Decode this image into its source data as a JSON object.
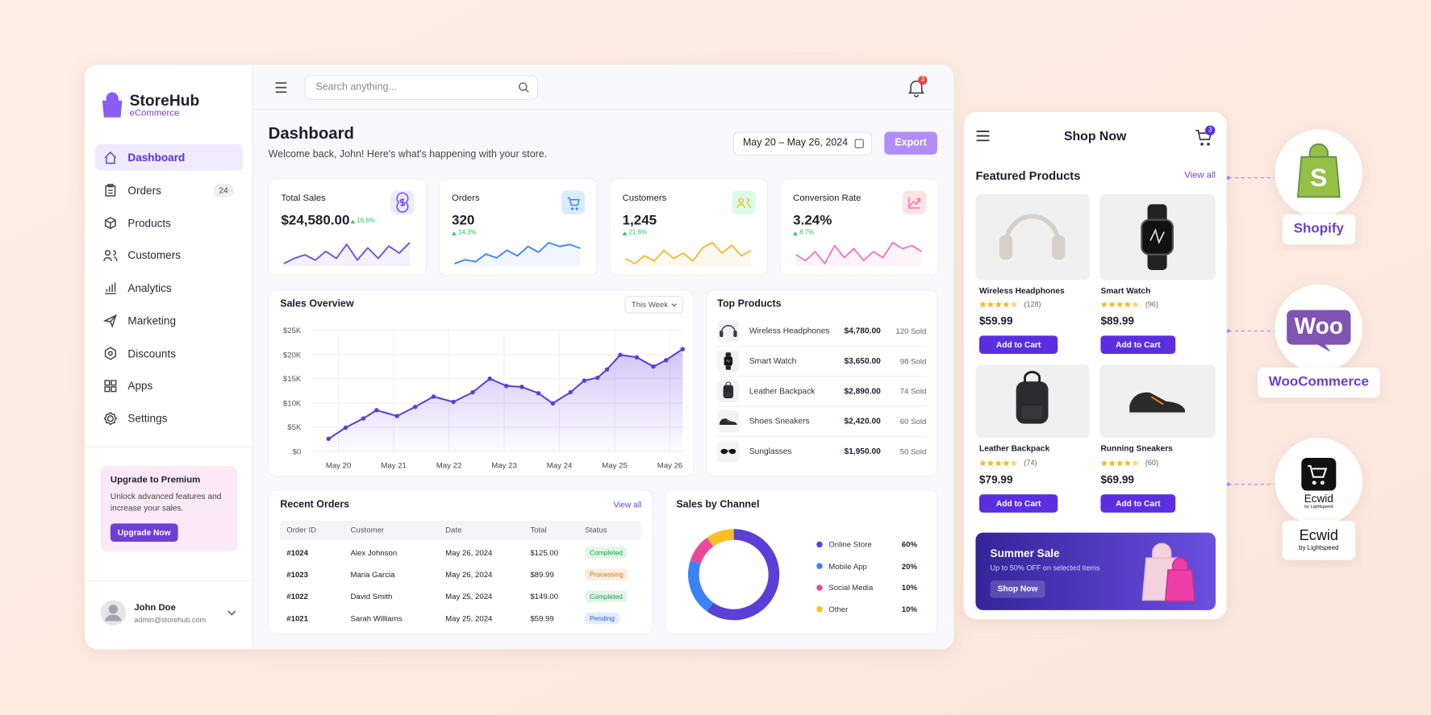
{
  "sidebar": {
    "brand": "StoreHub",
    "brand_sub": "eCommerce",
    "nav": [
      {
        "label": "Dashboard",
        "active": true
      },
      {
        "label": "Orders",
        "badge": "24"
      },
      {
        "label": "Products"
      },
      {
        "label": "Customers"
      },
      {
        "label": "Analytics"
      },
      {
        "label": "Marketing"
      },
      {
        "label": "Discounts"
      },
      {
        "label": "Apps"
      },
      {
        "label": "Settings"
      }
    ],
    "upgrade": {
      "title": "Upgrade to Premium",
      "text": "Unlock advanced features and increase your sales.",
      "button": "Upgrade Now"
    },
    "user": {
      "name": "John Doe",
      "email": "admin@storehub.com"
    }
  },
  "topbar": {
    "search_placeholder": "Search anything...",
    "notifications": "3"
  },
  "header": {
    "title": "Dashboard",
    "subtitle": "Welcome back, John! Here's what's happening with your store.",
    "date_range": "May 20 – May 26, 2024",
    "export": "Export"
  },
  "kpis": [
    {
      "label": "Total Sales",
      "value": "$24,580.00",
      "change": "16.6%",
      "color": "#6d4ae0",
      "icon_bg": "#ede9fe",
      "spark": [
        2,
        5,
        7,
        4,
        9,
        5,
        13,
        4,
        11,
        5,
        12,
        8,
        14
      ]
    },
    {
      "label": "Orders",
      "value": "320",
      "change": "14.3%",
      "color": "#3b82f6",
      "icon_bg": "#dbeafe",
      "spark": [
        3,
        5,
        4,
        8,
        6,
        10,
        7,
        12,
        9,
        14,
        12,
        13,
        11
      ]
    },
    {
      "label": "Customers",
      "value": "1,245",
      "change": "21.6%",
      "color": "#f5b82e",
      "icon_bg": "#dcfce7",
      "spark": [
        6,
        4,
        7,
        5,
        9,
        6,
        8,
        5,
        10,
        12,
        8,
        11,
        7,
        9
      ]
    },
    {
      "label": "Conversion Rate",
      "value": "3.24%",
      "change": "8.7%",
      "color": "#f472b6",
      "icon_bg": "#fde4e4",
      "spark": [
        8,
        6,
        9,
        5,
        11,
        7,
        10,
        6,
        9,
        7,
        12,
        10,
        11,
        9
      ]
    }
  ],
  "sales_overview": {
    "title": "Sales Overview",
    "filter": "This Week",
    "chart": {
      "type": "line",
      "color": "#5b3fd6",
      "grid": true,
      "x": [
        -0.18,
        0.13,
        0.45,
        0.69,
        1.06,
        1.39,
        1.72,
        2.08,
        2.43,
        2.74,
        3.04,
        3.32,
        3.62,
        3.88,
        4.2,
        4.45,
        4.69,
        4.86,
        5.1,
        5.4,
        5.7,
        5.93,
        6.23
      ],
      "values": [
        2600,
        4900,
        6800,
        8500,
        7300,
        9200,
        11300,
        10200,
        12200,
        15000,
        13500,
        13300,
        12000,
        9900,
        12200,
        14600,
        15200,
        16900,
        19900,
        19400,
        17500,
        18800,
        21100
      ],
      "xlim": [
        -0.51,
        6.23
      ],
      "ylim": [
        0,
        25000
      ],
      "xticks": [
        {
          "value": 0,
          "label": "May 20"
        },
        {
          "value": 1,
          "label": "May 21"
        },
        {
          "value": 2,
          "label": "May 22"
        },
        {
          "value": 3,
          "label": "May 23"
        },
        {
          "value": 4,
          "label": "May 24"
        },
        {
          "value": 5,
          "label": "May 25"
        },
        {
          "value": 6,
          "label": "May 26"
        }
      ],
      "yticks": [
        {
          "value": 0,
          "label": "$0"
        },
        {
          "value": 5000,
          "label": "$5K"
        },
        {
          "value": 10000,
          "label": "$10K"
        },
        {
          "value": 15000,
          "label": "$15K"
        },
        {
          "value": 20000,
          "label": "$20K"
        },
        {
          "value": 25000,
          "label": "$25K"
        }
      ]
    }
  },
  "top_products": {
    "title": "Top Products",
    "items": [
      {
        "name": "Wireless Headphones",
        "revenue": "$4,780.00",
        "sold": "120 Sold"
      },
      {
        "name": "Smart Watch",
        "revenue": "$3,650.00",
        "sold": "98 Sold"
      },
      {
        "name": "Leather Backpack",
        "revenue": "$2,890.00",
        "sold": "74 Sold"
      },
      {
        "name": "Shoes Sneakers",
        "revenue": "$2,420.00",
        "sold": "60 Sold"
      },
      {
        "name": "Sunglasses",
        "revenue": "$1,950.00",
        "sold": "50 Sold"
      }
    ]
  },
  "recent_orders": {
    "title": "Recent Orders",
    "view_all": "View all",
    "columns": [
      "Order ID",
      "Customer",
      "Date",
      "Total",
      "Status"
    ],
    "rows": [
      {
        "id": "#1024",
        "customer": "Alex Johnson",
        "date": "May 26, 2024",
        "total": "$125.00",
        "status": "Completed",
        "status_color": "#16a34a"
      },
      {
        "id": "#1023",
        "customer": "Maria Garcia",
        "date": "May 26, 2024",
        "total": "$89.99",
        "status": "Processing",
        "status_color": "#d97706"
      },
      {
        "id": "#1022",
        "customer": "David Smith",
        "date": "May 25, 2024",
        "total": "$149.00",
        "status": "Completed",
        "status_color": "#16a34a"
      },
      {
        "id": "#1021",
        "customer": "Sarah Williams",
        "date": "May 25, 2024",
        "total": "$59.99",
        "status": "Pending",
        "status_color": "#2563eb"
      }
    ]
  },
  "sales_by_channel": {
    "title": "Sales by Channel",
    "chart": {
      "type": "pie",
      "categories": [
        "Online Store",
        "Mobile App",
        "Social Media",
        "Other"
      ],
      "values": [
        60,
        20,
        10,
        10
      ],
      "value_labels": [
        "60%",
        "20%",
        "10%",
        "10%"
      ],
      "colors": [
        "#5b3fd6",
        "#3b82f6",
        "#ec4899",
        "#fbbf24"
      ]
    }
  },
  "shop": {
    "title": "Shop Now",
    "cart_count": "3",
    "section_title": "Featured Products",
    "view_all": "View all",
    "products": [
      {
        "name": "Wireless Headphones",
        "rating": 4.5,
        "reviews": "(128)",
        "price": "$59.99",
        "button": "Add to Cart"
      },
      {
        "name": "Smart Watch",
        "rating": 4.5,
        "reviews": "(96)",
        "price": "$89.99",
        "button": "Add to Cart"
      },
      {
        "name": "Leather Backpack",
        "rating": 4.5,
        "reviews": "(74)",
        "price": "$79.99",
        "button": "Add to Cart"
      },
      {
        "name": "Running Sneakers",
        "rating": 4.5,
        "reviews": "(60)",
        "price": "$69.99",
        "button": "Add to Cart"
      }
    ],
    "banner": {
      "title": "Summer Sale",
      "text": "Up to 50% OFF on selected items",
      "button": "Shop Now"
    }
  },
  "integrations": [
    {
      "name": "Shopify",
      "logo_text": "S"
    },
    {
      "name": "WooCommerce",
      "logo_text": "Woo"
    },
    {
      "name": "Ecwid",
      "sub": "by Lightspeed",
      "logo_text": "Ecwid",
      "logo_sub": "by Lightspeed"
    }
  ]
}
